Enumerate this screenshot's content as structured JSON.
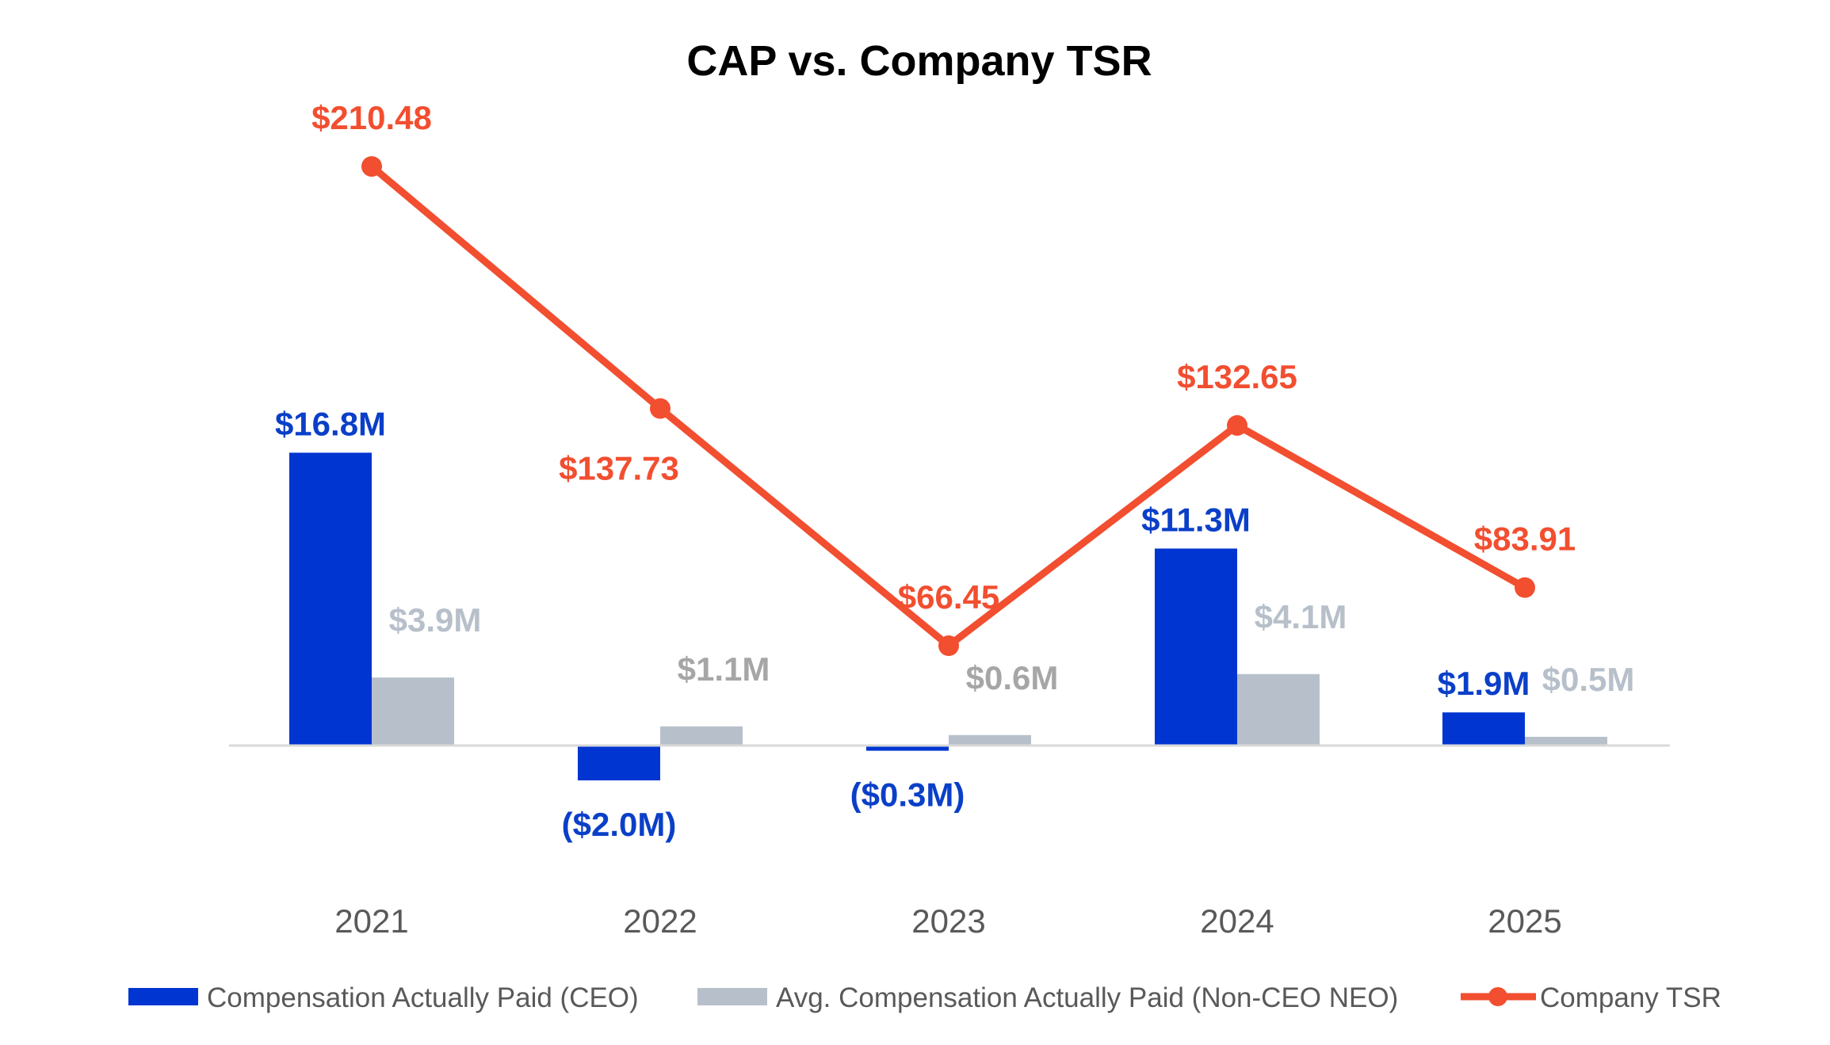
{
  "chart_data": {
    "type": "bar+line",
    "title": "CAP vs. Company TSR",
    "categories": [
      "2021",
      "2022",
      "2023",
      "2024",
      "2025"
    ],
    "series": [
      {
        "name": "Compensation Actually Paid (CEO)",
        "type": "bar",
        "color": "#0035D1",
        "label_color": "#0A3FC8",
        "values": [
          16.8,
          -2.0,
          -0.3,
          11.3,
          1.9
        ],
        "labels": [
          "$16.8M",
          "($2.0M)",
          "($0.3M)",
          "$11.3M",
          "$1.9M"
        ]
      },
      {
        "name": "Avg. Compensation Actually Paid (Non-CEO NEO)",
        "type": "bar",
        "color": "#B7C0CA",
        "values": [
          3.9,
          1.1,
          0.6,
          4.1,
          0.5
        ],
        "labels": [
          "$3.9M",
          "$1.1M",
          "$0.6M",
          "$4.1M",
          "$0.5M"
        ],
        "label_colors": [
          "#B7C0CA",
          "#A6A6A6",
          "#A6A6A6",
          "#B7C0CA",
          "#B7C0CA"
        ]
      },
      {
        "name": "Company TSR",
        "type": "line",
        "axis": "secondary",
        "color": "#F24E30",
        "values": [
          210.48,
          137.73,
          66.45,
          132.65,
          83.91
        ],
        "labels": [
          "$210.48",
          "$137.73",
          "$66.45",
          "$132.65",
          "$83.91"
        ],
        "label_position": [
          "above",
          "below-left",
          "above",
          "above",
          "above"
        ]
      }
    ],
    "grid": false,
    "legend": "bottom",
    "xlabel": "",
    "ylabel": ""
  }
}
